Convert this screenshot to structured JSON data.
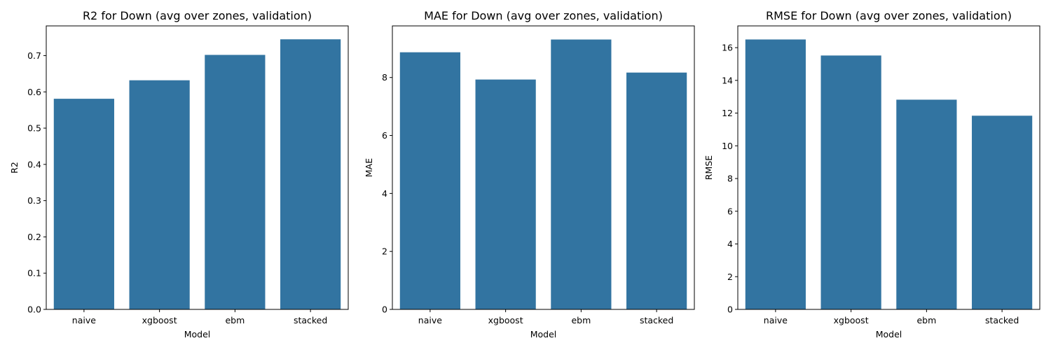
{
  "chart_data": [
    {
      "type": "bar",
      "title": "R2 for Down (avg over zones, validation)",
      "xlabel": "Model",
      "ylabel": "R2",
      "categories": [
        "naive",
        "xgboost",
        "ebm",
        "stacked"
      ],
      "values": [
        0.581,
        0.632,
        0.702,
        0.745
      ],
      "ylim": [
        0,
        0.782
      ],
      "yticks": [
        0.0,
        0.1,
        0.2,
        0.3,
        0.4,
        0.5,
        0.6,
        0.7
      ],
      "ytick_labels": [
        "0.0",
        "0.1",
        "0.2",
        "0.3",
        "0.4",
        "0.5",
        "0.6",
        "0.7"
      ],
      "bar_color": "#3274a1",
      "grid": false
    },
    {
      "type": "bar",
      "title": "MAE for Down (avg over zones, validation)",
      "xlabel": "Model",
      "ylabel": "MAE",
      "categories": [
        "naive",
        "xgboost",
        "ebm",
        "stacked"
      ],
      "values": [
        8.87,
        7.93,
        9.31,
        8.17
      ],
      "ylim": [
        0,
        9.78
      ],
      "yticks": [
        0,
        2,
        4,
        6,
        8
      ],
      "ytick_labels": [
        "0",
        "2",
        "4",
        "6",
        "8"
      ],
      "bar_color": "#3274a1",
      "grid": false
    },
    {
      "type": "bar",
      "title": "RMSE for Down (avg over zones, validation)",
      "xlabel": "Model",
      "ylabel": "RMSE",
      "categories": [
        "naive",
        "xgboost",
        "ebm",
        "stacked"
      ],
      "values": [
        16.5,
        15.52,
        12.82,
        11.84
      ],
      "ylim": [
        0,
        17.33
      ],
      "yticks": [
        0,
        2,
        4,
        6,
        8,
        10,
        12,
        14,
        16
      ],
      "ytick_labels": [
        "0",
        "2",
        "4",
        "6",
        "8",
        "10",
        "12",
        "14",
        "16"
      ],
      "bar_color": "#3274a1",
      "grid": false
    }
  ]
}
